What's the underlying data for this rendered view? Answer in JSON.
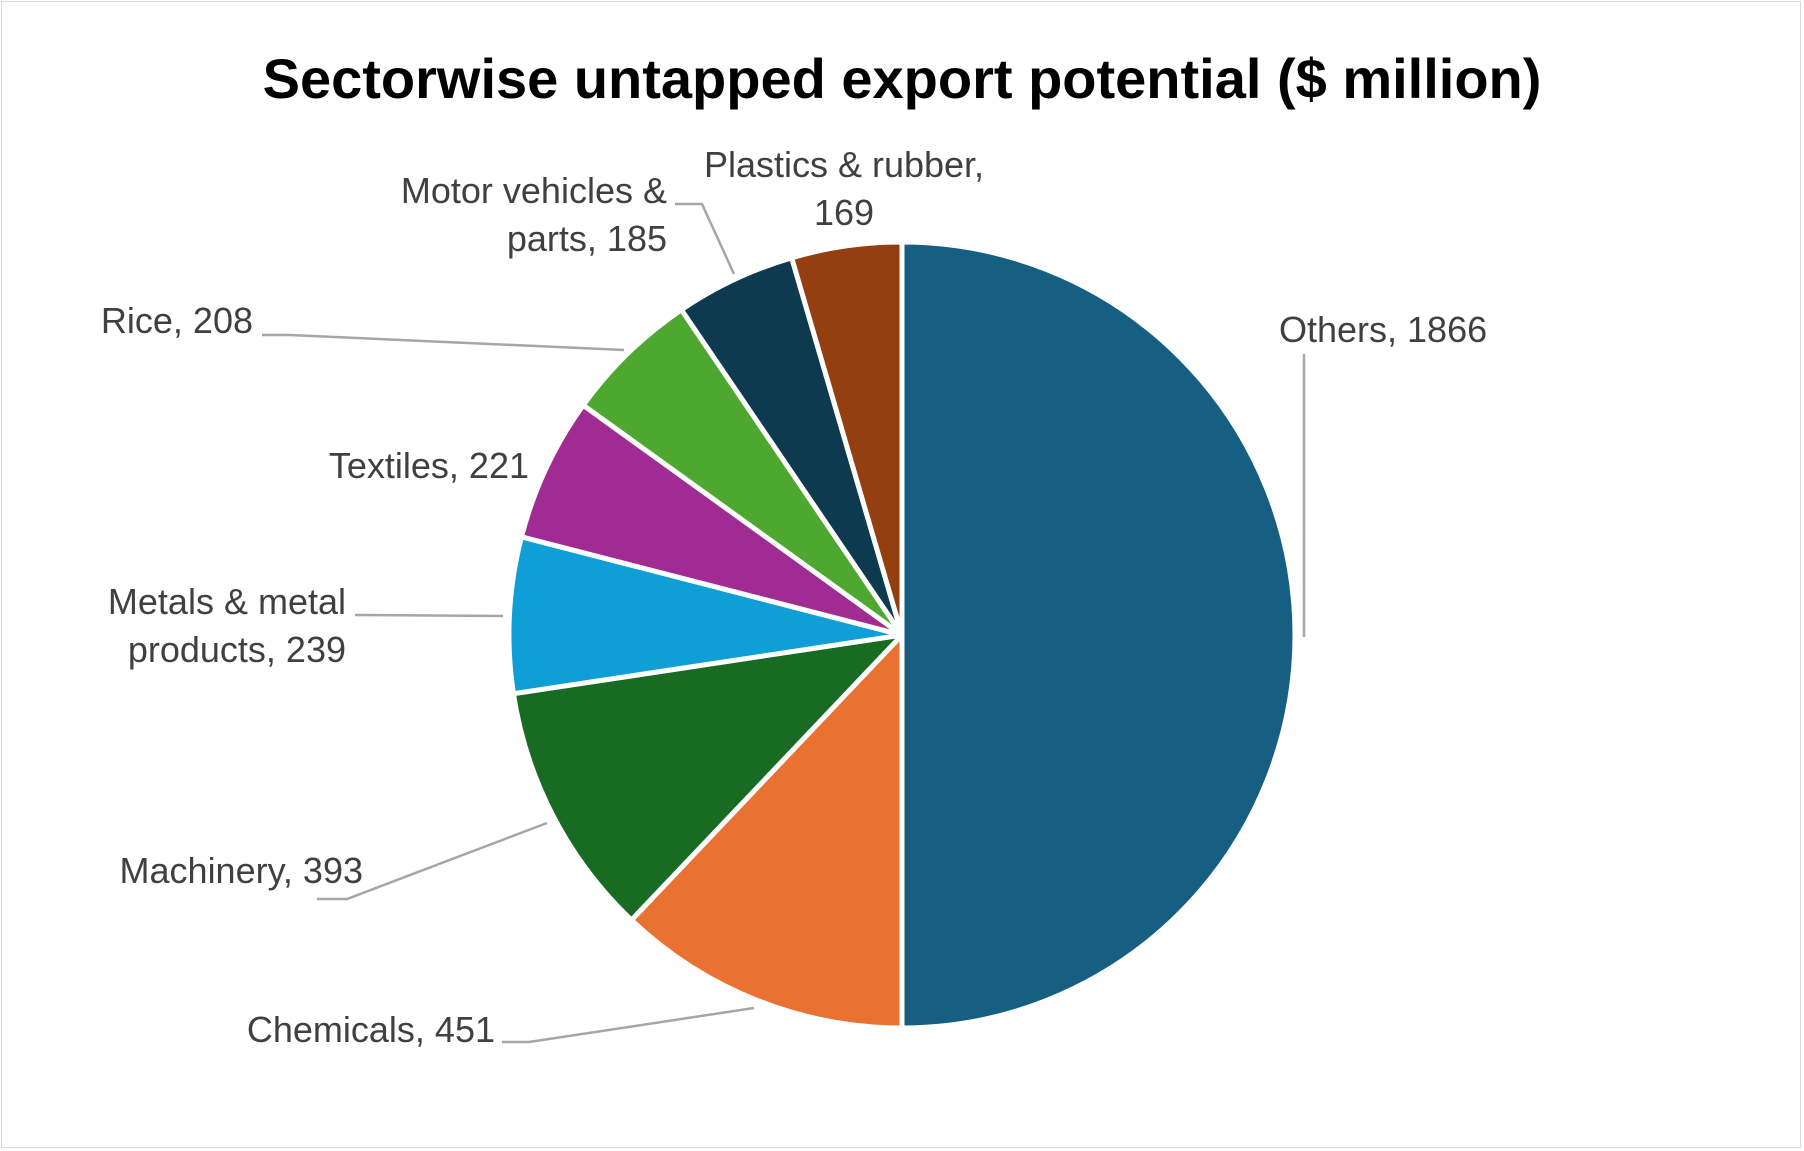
{
  "chart_data": {
    "type": "pie",
    "title": "Sectorwise untapped export potential ($ million)",
    "slices": [
      {
        "label": "Others",
        "value": 1866,
        "color": "#175F82",
        "label_lines": [
          "Others, 1866"
        ]
      },
      {
        "label": "Chemicals",
        "value": 451,
        "color": "#E97132",
        "label_lines": [
          "Chemicals, 451"
        ]
      },
      {
        "label": "Machinery",
        "value": 393,
        "color": "#196B24",
        "label_lines": [
          "Machinery, 393"
        ]
      },
      {
        "label": "Metals & metal products",
        "value": 239,
        "color": "#0F9ED5",
        "label_lines": [
          "Metals & metal",
          "products, 239"
        ]
      },
      {
        "label": "Textiles",
        "value": 221,
        "color": "#A02B93",
        "label_lines": [
          "Textiles, 221"
        ]
      },
      {
        "label": "Rice",
        "value": 208,
        "color": "#4EA72E",
        "label_lines": [
          "Rice, 208"
        ]
      },
      {
        "label": "Motor vehicles & parts",
        "value": 185,
        "color": "#0E3A50",
        "label_lines": [
          "Motor vehicles &",
          "parts, 185"
        ]
      },
      {
        "label": "Plastics & rubber",
        "value": 169,
        "color": "#933F0F",
        "label_lines": [
          "Plastics & rubber,",
          "169"
        ]
      }
    ]
  }
}
